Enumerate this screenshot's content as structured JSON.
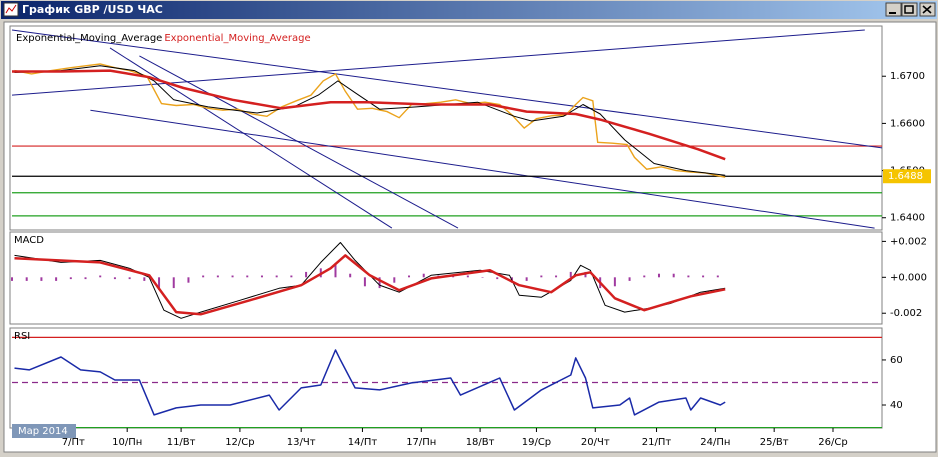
{
  "window": {
    "title": "График GBP /USD ЧАС"
  },
  "period_label": "Мар 2014",
  "chart_data": [
    {
      "type": "line",
      "xlim": [
        0,
        355
      ],
      "ylim": [
        1.6374,
        1.6798
      ],
      "yticks": [
        {
          "value": 1.64,
          "label": "1.6400"
        },
        {
          "value": 1.65,
          "label": "1.6500"
        },
        {
          "value": 1.66,
          "label": "1.6600"
        },
        {
          "value": 1.67,
          "label": "1.6700"
        }
      ],
      "price": {
        "color": "#eba31c",
        "x": [
          1,
          8,
          16,
          24,
          30,
          36,
          42,
          48,
          55,
          61,
          67,
          74,
          80,
          86,
          92,
          98,
          104,
          110,
          116,
          122,
          127,
          132,
          136,
          141,
          147,
          153,
          158,
          163,
          169,
          175,
          181,
          187,
          193,
          199,
          204,
          209,
          214,
          220,
          226,
          230,
          233,
          237,
          239,
          245,
          251,
          254,
          259,
          265,
          271,
          277,
          283,
          288,
          291
        ],
        "values": [
          1.6712,
          1.6705,
          1.6712,
          1.6718,
          1.6722,
          1.6726,
          1.6718,
          1.6712,
          1.67,
          1.6642,
          1.6638,
          1.664,
          1.6632,
          1.6628,
          1.663,
          1.662,
          1.6615,
          1.6635,
          1.6648,
          1.666,
          1.669,
          1.6705,
          1.6668,
          1.663,
          1.6632,
          1.6625,
          1.6612,
          1.664,
          1.6642,
          1.6645,
          1.665,
          1.6642,
          1.6645,
          1.664,
          1.6618,
          1.659,
          1.661,
          1.6616,
          1.6618,
          1.664,
          1.6655,
          1.6648,
          1.656,
          1.6558,
          1.6555,
          1.6528,
          1.6503,
          1.6508,
          1.65,
          1.6497,
          1.6495,
          1.6489,
          1.6486
        ]
      },
      "series": [
        {
          "name": "Exponential_Moving_Average",
          "color": "#000000",
          "width": 1,
          "x": [
            1,
            20,
            36,
            50,
            58,
            66,
            80,
            100,
            115,
            125,
            133,
            140,
            150,
            165,
            190,
            205,
            212,
            225,
            233,
            240,
            250,
            262,
            275,
            291
          ],
          "values": [
            1.6708,
            1.6712,
            1.6722,
            1.6712,
            1.669,
            1.665,
            1.6635,
            1.6622,
            1.6635,
            1.666,
            1.669,
            1.6665,
            1.663,
            1.6635,
            1.6645,
            1.6615,
            1.6605,
            1.6615,
            1.664,
            1.662,
            1.6565,
            1.6515,
            1.65,
            1.649
          ]
        },
        {
          "name": "Exponential_Moving_Average",
          "color": "#d42020",
          "width": 2.5,
          "x": [
            0,
            20,
            40,
            56,
            70,
            90,
            110,
            130,
            145,
            170,
            195,
            210,
            230,
            240,
            260,
            280,
            291
          ],
          "values": [
            1.671,
            1.671,
            1.6712,
            1.6698,
            1.6675,
            1.665,
            1.6632,
            1.6645,
            1.6645,
            1.664,
            1.664,
            1.6625,
            1.662,
            1.6608,
            1.6578,
            1.6545,
            1.6524
          ]
        }
      ],
      "levels": [
        {
          "value": 1.6552,
          "color": "#d42020"
        },
        {
          "value": 1.6453,
          "color": "#20a020"
        },
        {
          "value": 1.6404,
          "color": "#20a020"
        }
      ],
      "trendlines": [
        {
          "color": "#1c1c8c",
          "x": [
            0,
            348
          ],
          "values": [
            1.666,
            1.6798
          ]
        },
        {
          "color": "#1c1c8c",
          "x": [
            0,
            355
          ],
          "values": [
            1.6798,
            1.6548
          ]
        },
        {
          "color": "#1c1c8c",
          "x": [
            40,
            155
          ],
          "values": [
            1.676,
            1.6378
          ]
        },
        {
          "color": "#1c1c8c",
          "x": [
            52,
            182
          ],
          "values": [
            1.6743,
            1.6378
          ]
        },
        {
          "color": "#1c1c8c",
          "x": [
            32,
            352
          ],
          "values": [
            1.6628,
            1.6378
          ]
        }
      ],
      "last_price": 1.6488
    },
    {
      "type": "line",
      "title": "MACD",
      "xlim": [
        0,
        355
      ],
      "ylim": [
        -0.0026,
        0.0023
      ],
      "yticks": [
        {
          "value": -0.002,
          "label": "-0.002"
        },
        {
          "value": 0,
          "label": "+0.000"
        },
        {
          "value": 0.002,
          "label": "+0.002"
        }
      ],
      "histogram": {
        "color": "#a03aa0",
        "x": [
          0,
          6,
          12,
          18,
          24,
          30,
          36,
          42,
          48,
          54,
          60,
          66,
          72,
          78,
          84,
          90,
          96,
          102,
          108,
          114,
          120,
          126,
          132,
          138,
          144,
          150,
          156,
          162,
          168,
          174,
          180,
          186,
          192,
          198,
          204,
          210,
          216,
          222,
          228,
          234,
          240,
          246,
          252,
          258,
          264,
          270,
          276,
          282,
          288
        ],
        "values": [
          -0.0002,
          -0.0002,
          -0.0002,
          -0.0002,
          -0.0001,
          -0.0001,
          0.0001,
          -0.0001,
          -0.0001,
          -0.0002,
          -0.0007,
          -0.0006,
          -0.0003,
          0.0001,
          0.0001,
          0.0001,
          0.0001,
          0.0001,
          0.0001,
          0.0001,
          0.0003,
          0.0005,
          0.0008,
          0.0002,
          -0.0005,
          -0.0006,
          -0.0003,
          0.0001,
          0.0002,
          0.0001,
          0.0001,
          0.0001,
          0,
          -0.0001,
          -0.0003,
          -0.0002,
          0.0001,
          0.0001,
          0.0003,
          0.0003,
          -0.0006,
          -0.0005,
          -0.0002,
          0.0001,
          0.0002,
          0.0002,
          0.0001,
          0.0001,
          0.0001
        ]
      },
      "series": [
        {
          "color": "#000000",
          "width": 1,
          "x": [
            1,
            20,
            36,
            48,
            56,
            62,
            69,
            77,
            93,
            109,
            118,
            126,
            134,
            140,
            150,
            158,
            171,
            191,
            203,
            207,
            216,
            228,
            232,
            236,
            242,
            250,
            260,
            269,
            281,
            291
          ],
          "values": [
            0.00122,
            0.00083,
            0.00094,
            0.0005,
            0,
            -0.00183,
            -0.00228,
            -0.00194,
            -0.00128,
            -0.00061,
            -0.00044,
            0.00083,
            0.00194,
            0.00094,
            -0.00044,
            -0.00083,
            0.00011,
            0.00039,
            0.00011,
            -0.001,
            -0.00111,
            -0.00017,
            0.00067,
            0.00039,
            -0.00156,
            -0.00194,
            -0.00172,
            -0.00144,
            -0.00083,
            -0.00061
          ]
        },
        {
          "color": "#d42020",
          "width": 2.5,
          "x": [
            1,
            36,
            56,
            67,
            77,
            97,
            118,
            130,
            136,
            146,
            158,
            171,
            195,
            207,
            220,
            230,
            236,
            246,
            258,
            277,
            291
          ],
          "values": [
            0.00106,
            0.00083,
            0.00011,
            -0.00194,
            -0.00206,
            -0.00128,
            -0.00044,
            0.0005,
            0.00122,
            0.00011,
            -0.00072,
            -6e-05,
            0.00039,
            -0.00044,
            -0.00083,
            0.00011,
            0.00028,
            -0.00117,
            -0.00183,
            -0.00106,
            -0.00067
          ]
        }
      ]
    },
    {
      "type": "line",
      "title": "RSI",
      "xlim": [
        0,
        355
      ],
      "ylim": [
        29.8,
        72.4
      ],
      "yticks": [
        40,
        60
      ],
      "levels": [
        {
          "value": 70,
          "color": "#d42020"
        },
        {
          "value": 50,
          "color": "#8a2a8a",
          "style": "dashed"
        },
        {
          "value": 30,
          "color": "#20a020"
        }
      ],
      "series": [
        {
          "color": "#1a2aa8",
          "width": 1.5,
          "x": [
            1,
            7,
            20,
            28,
            36,
            42,
            52,
            58,
            67,
            77,
            89,
            105,
            109,
            118,
            126,
            132,
            134,
            140,
            150,
            163,
            179,
            183,
            199,
            205,
            216,
            228,
            230,
            234,
            237,
            248,
            252,
            254,
            264,
            275,
            277,
            281,
            289,
            291
          ],
          "values": [
            56.4,
            55.6,
            61.3,
            55.6,
            54.7,
            51.1,
            51.1,
            35.6,
            38.7,
            40,
            40,
            44.4,
            37.8,
            47.6,
            48.9,
            64.4,
            60,
            47.6,
            46.7,
            49.8,
            52,
            44.4,
            52,
            37.8,
            46.7,
            53.3,
            60.9,
            52,
            38.7,
            40,
            43.1,
            35.6,
            41.3,
            43.1,
            37.8,
            43.1,
            40,
            41.3
          ]
        }
      ],
      "xticks": [
        {
          "value": 25,
          "label": "7/Пт"
        },
        {
          "value": 47,
          "label": "10/Пн"
        },
        {
          "value": 69,
          "label": "11/Вт"
        },
        {
          "value": 93,
          "label": "12/Ср"
        },
        {
          "value": 118,
          "label": "13/Чт"
        },
        {
          "value": 143,
          "label": "14/Пт"
        },
        {
          "value": 167,
          "label": "17/Пн"
        },
        {
          "value": 191,
          "label": "18/Вт"
        },
        {
          "value": 214,
          "label": "19/Ср"
        },
        {
          "value": 238,
          "label": "20/Чт"
        },
        {
          "value": 263,
          "label": "21/Пт"
        },
        {
          "value": 287,
          "label": "24/Пн"
        },
        {
          "value": 311,
          "label": "25/Вт"
        },
        {
          "value": 335,
          "label": "26/Ср"
        }
      ]
    }
  ]
}
